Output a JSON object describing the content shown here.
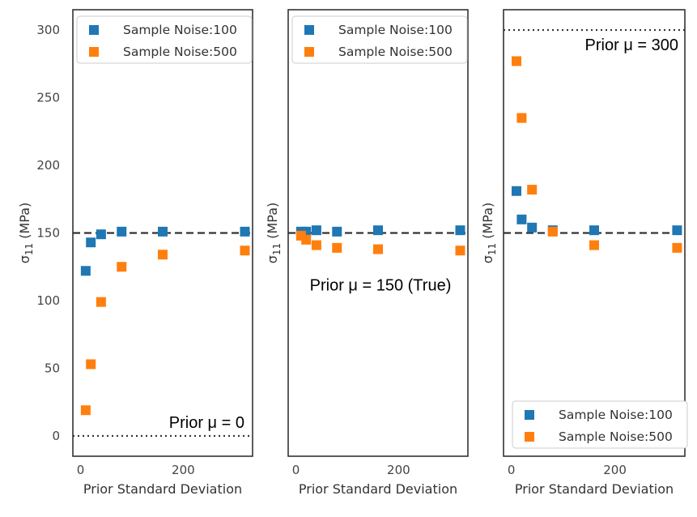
{
  "colors": {
    "noise100": "#1f77b4",
    "noise500": "#ff7f0e",
    "frame": "#333333",
    "reference_line": "#333333"
  },
  "chart_data": [
    {
      "type": "scatter",
      "xlabel": "Prior Standard Deviation",
      "ylabel": "σ11 (MPa)",
      "xlim": [
        -15,
        335
      ],
      "ylim": [
        -15,
        315
      ],
      "x_ticks": [
        0,
        200
      ],
      "y_ticks": [
        0,
        50,
        100,
        150,
        200,
        250,
        300
      ],
      "show_y_tick_labels": true,
      "show_y_label": true,
      "legend_position": "top-left",
      "annotation": "Prior μ = 0",
      "annotation_position": "bottom-right",
      "true_value_line": 150,
      "prior_line": 0,
      "series": [
        {
          "name": "Sample Noise:100",
          "x": [
            10,
            20,
            40,
            80,
            160,
            320
          ],
          "y": [
            122,
            143,
            149,
            151,
            151,
            151
          ]
        },
        {
          "name": "Sample Noise:500",
          "x": [
            10,
            20,
            40,
            80,
            160,
            320
          ],
          "y": [
            19,
            53,
            99,
            125,
            134,
            137
          ]
        }
      ]
    },
    {
      "type": "scatter",
      "xlabel": "Prior Standard Deviation",
      "ylabel": "σ11 (MPa)",
      "xlim": [
        -15,
        335
      ],
      "ylim": [
        -15,
        315
      ],
      "x_ticks": [
        0,
        200
      ],
      "y_ticks": [
        0,
        50,
        100,
        150,
        200,
        250,
        300
      ],
      "show_y_tick_labels": false,
      "show_y_label": true,
      "legend_position": "top-left",
      "annotation": "Prior μ = 150 (True)",
      "annotation_position": "center-below-line",
      "true_value_line": 150,
      "prior_line": null,
      "series": [
        {
          "name": "Sample Noise:100",
          "x": [
            10,
            20,
            40,
            80,
            160,
            320
          ],
          "y": [
            151,
            151,
            152,
            151,
            152,
            152
          ]
        },
        {
          "name": "Sample Noise:500",
          "x": [
            10,
            20,
            40,
            80,
            160,
            320
          ],
          "y": [
            148,
            145,
            141,
            139,
            138,
            137
          ]
        }
      ]
    },
    {
      "type": "scatter",
      "xlabel": "Prior Standard Deviation",
      "ylabel": "σ11 (MPa)",
      "xlim": [
        -15,
        335
      ],
      "ylim": [
        -15,
        315
      ],
      "x_ticks": [
        0,
        200
      ],
      "y_ticks": [
        0,
        50,
        100,
        150,
        200,
        250,
        300
      ],
      "show_y_tick_labels": false,
      "show_y_label": true,
      "legend_position": "bottom-right",
      "annotation": "Prior μ = 300",
      "annotation_position": "top-right",
      "true_value_line": 150,
      "prior_line": 300,
      "series": [
        {
          "name": "Sample Noise:100",
          "x": [
            10,
            20,
            40,
            80,
            160,
            320
          ],
          "y": [
            181,
            160,
            154,
            152,
            152,
            152
          ]
        },
        {
          "name": "Sample Noise:500",
          "x": [
            10,
            20,
            40,
            80,
            160,
            320
          ],
          "y": [
            277,
            235,
            182,
            151,
            141,
            139
          ]
        }
      ]
    }
  ]
}
